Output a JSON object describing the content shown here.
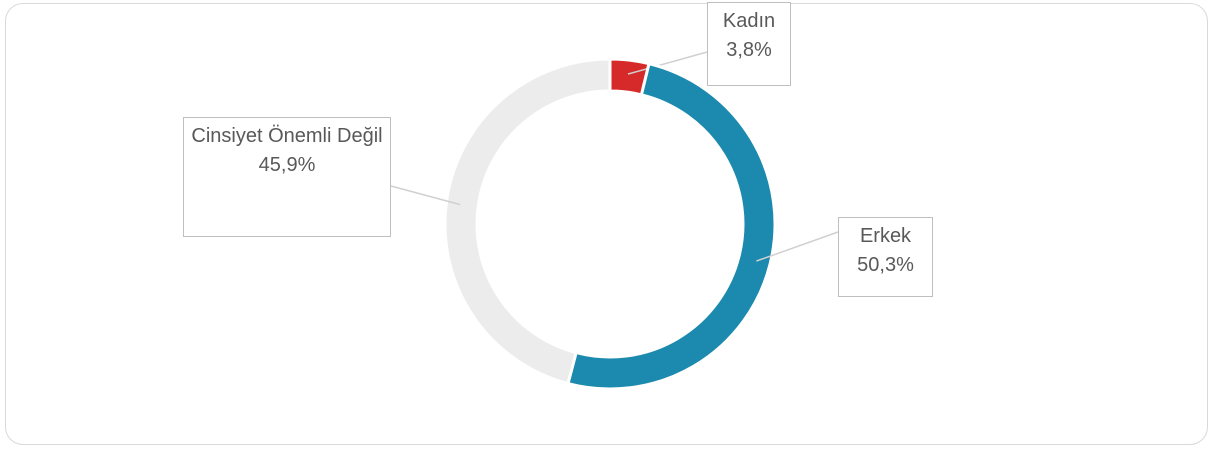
{
  "chart_data": {
    "type": "donut",
    "categories": [
      "Kadın",
      "Erkek",
      "Cinsiyet Önemli Değil"
    ],
    "values": [
      3.8,
      50.3,
      45.9
    ],
    "value_labels": [
      "3,8%",
      "50,3%",
      "45,9%"
    ],
    "colors": [
      "#d62a2a",
      "#1b8aae",
      "#ececec"
    ]
  }
}
